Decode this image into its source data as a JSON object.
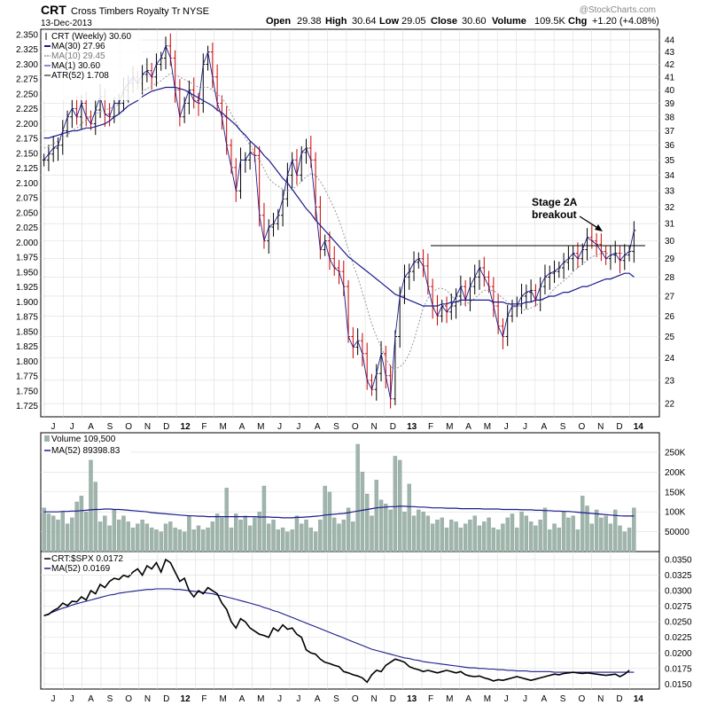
{
  "header": {
    "symbol": "CRT",
    "name": "Cross Timbers Royalty Tr",
    "exchange": "NYSE",
    "date": "13-Dec-2013",
    "open_label": "Open",
    "open": "29.38",
    "high_label": "High",
    "high": "30.64",
    "low_label": "Low",
    "low": "29.05",
    "close_label": "Close",
    "close": "30.60",
    "volume_label": "Volume",
    "volume": "109.5K",
    "chg_label": "Chg",
    "chg": "+1.20 (+4.08%)",
    "watermark": "@StockCharts.com"
  },
  "colors": {
    "up": "#000000",
    "down": "#cc0000",
    "ma30": "#1a1a8c",
    "ma10": "#999999",
    "volume_bar": "#9fb5ac",
    "ratio_line": "#000000",
    "grid": "#dddddd"
  },
  "legend": {
    "price": [
      "CRT (Weekly) 30.60",
      "MA(30) 27.96",
      "MA(10) 29.45",
      "MA(1) 30.60",
      "ATR(52) 1.708"
    ],
    "volume": [
      "Volume 109,500",
      "MA(52) 89398.83"
    ],
    "ratio": [
      "CRT:$SPX 0.0172",
      "MA(52) 0.0169"
    ]
  },
  "annotation": {
    "line1": "Stage 2A",
    "line2": "breakout"
  },
  "months": [
    "J",
    "J",
    "A",
    "S",
    "O",
    "N",
    "D",
    "12",
    "F",
    "M",
    "A",
    "M",
    "J",
    "J",
    "A",
    "S",
    "O",
    "N",
    "D",
    "13",
    "F",
    "M",
    "A",
    "M",
    "J",
    "J",
    "A",
    "S",
    "O",
    "N",
    "D",
    "14"
  ],
  "chart_data": [
    {
      "type": "line",
      "title": "CRT (Weekly)",
      "y_left_ticks": [
        "2.350",
        "2.325",
        "2.300",
        "2.275",
        "2.250",
        "2.225",
        "2.200",
        "2.175",
        "2.150",
        "2.125",
        "2.100",
        "2.075",
        "2.050",
        "2.025",
        "2.000",
        "1.975",
        "1.950",
        "1.925",
        "1.900",
        "1.875",
        "1.850",
        "1.825",
        "1.800",
        "1.775",
        "1.750",
        "1.725"
      ],
      "y_right_ticks": [
        44,
        43,
        42,
        41,
        40,
        39,
        38,
        37,
        36,
        35,
        34,
        33,
        32,
        31,
        30,
        29,
        28,
        27,
        26,
        25,
        24,
        23,
        22
      ],
      "y_right_scale": "log",
      "ylim": [
        21.6,
        44.6
      ],
      "close": [
        35.0,
        35.4,
        35.8,
        36.0,
        37.0,
        38.0,
        38.6,
        38.0,
        39.0,
        38.0,
        37.5,
        38.5,
        39.5,
        38.2,
        38.0,
        39.0,
        39.0,
        40.0,
        40.5,
        41.0,
        40.5,
        41.2,
        41.5,
        41.0,
        42.0,
        42.5,
        43.5,
        42.5,
        40.0,
        38.0,
        39.0,
        40.0,
        39.2,
        39.0,
        42.0,
        43.0,
        41.0,
        39.0,
        38.0,
        36.0,
        34.5,
        33.0,
        35.0,
        35.0,
        35.5,
        35.3,
        31.5,
        30.0,
        30.8,
        31.0,
        31.5,
        32.5,
        34.0,
        35.0,
        34.0,
        35.5,
        35.8,
        35.0,
        32.0,
        29.5,
        30.0,
        29.0,
        28.5,
        28.3,
        27.5,
        25.0,
        24.5,
        24.8,
        24.2,
        23.0,
        22.6,
        23.3,
        24.2,
        23.2,
        22.2,
        25.0,
        27.0,
        28.0,
        28.3,
        28.8,
        29.0,
        28.6,
        27.5,
        26.5,
        26.0,
        26.5,
        26.2,
        26.5,
        27.0,
        27.5,
        26.8,
        27.5,
        28.0,
        28.5,
        28.0,
        27.5,
        26.5,
        25.5,
        25.0,
        26.0,
        26.5,
        26.5,
        27.0,
        27.2,
        27.3,
        26.8,
        27.5,
        28.0,
        28.2,
        28.3,
        28.5,
        28.8,
        29.0,
        29.3,
        29.0,
        29.5,
        30.2,
        30.0,
        29.8,
        29.4,
        29.0,
        29.2,
        29.3,
        28.9,
        29.2,
        29.4,
        30.6
      ],
      "ma30": [
        36.5,
        36.5,
        36.6,
        36.7,
        36.8,
        36.9,
        37.0,
        37.0,
        37.1,
        37.2,
        37.2,
        37.3,
        37.4,
        37.5,
        37.7,
        38.0,
        38.2,
        38.5,
        38.8,
        39.0,
        39.2,
        39.5,
        39.7,
        39.9,
        40.0,
        40.1,
        40.2,
        40.2,
        40.2,
        40.1,
        40.0,
        39.8,
        39.6,
        39.4,
        39.2,
        39.0,
        38.8,
        38.5,
        38.3,
        38.0,
        37.7,
        37.4,
        37.0,
        36.7,
        36.3,
        36.0,
        35.7,
        35.3,
        35.0,
        34.6,
        34.2,
        33.8,
        33.5,
        33.1,
        32.7,
        32.3,
        31.9,
        31.6,
        31.2,
        30.9,
        30.6,
        30.3,
        30.0,
        29.7,
        29.4,
        29.1,
        28.9,
        28.7,
        28.5,
        28.3,
        28.1,
        27.9,
        27.7,
        27.5,
        27.3,
        27.1,
        27.0,
        26.9,
        26.8,
        26.7,
        26.6,
        26.5,
        26.5,
        26.5,
        26.5,
        26.6,
        26.6,
        26.7,
        26.7,
        26.8,
        26.8,
        26.8,
        26.8,
        26.8,
        26.8,
        26.8,
        26.7,
        26.7,
        26.7,
        26.6,
        26.6,
        26.6,
        26.6,
        26.7,
        26.7,
        26.8,
        26.8,
        26.9,
        27.0,
        27.0,
        27.1,
        27.2,
        27.2,
        27.3,
        27.4,
        27.5,
        27.5,
        27.6,
        27.7,
        27.8,
        27.9,
        27.9,
        28.0,
        28.1,
        28.2,
        28.2,
        28.0
      ],
      "ma10": [
        35.8,
        35.9,
        36.1,
        36.3,
        36.5,
        36.7,
        37.0,
        37.2,
        37.5,
        37.8,
        38.0,
        38.2,
        38.4,
        38.5,
        38.6,
        38.8,
        38.9,
        39.1,
        39.3,
        39.5,
        39.7,
        39.9,
        40.1,
        40.3,
        40.5,
        40.7,
        41.0,
        41.3,
        41.2,
        41.0,
        40.8,
        40.6,
        40.4,
        40.2,
        40.2,
        40.2,
        40.0,
        39.7,
        39.4,
        38.9,
        38.2,
        37.6,
        37.0,
        36.5,
        36.0,
        35.5,
        35.0,
        34.4,
        33.8,
        33.5,
        33.3,
        33.1,
        33.0,
        33.1,
        33.3,
        33.6,
        33.9,
        34.1,
        34.0,
        33.6,
        33.1,
        32.5,
        31.9,
        31.2,
        30.4,
        29.5,
        28.7,
        28.0,
        27.2,
        26.4,
        25.6,
        25.0,
        24.5,
        24.0,
        23.6,
        23.5,
        23.6,
        23.8,
        24.2,
        24.8,
        25.6,
        26.4,
        26.9,
        27.2,
        27.4,
        27.4,
        27.3,
        27.0,
        26.8,
        26.6,
        26.6,
        26.7,
        26.9,
        27.1,
        27.3,
        27.3,
        27.3,
        27.1,
        26.9,
        26.7,
        26.5,
        26.4,
        26.3,
        26.3,
        26.4,
        26.5,
        26.7,
        26.9,
        27.1,
        27.4,
        27.6,
        27.8,
        28.0,
        28.3,
        28.5,
        28.7,
        28.9,
        29.1,
        29.2,
        29.3,
        29.3,
        29.3,
        29.3,
        29.3,
        29.3,
        29.4,
        29.45
      ]
    },
    {
      "type": "bar",
      "title": "Volume",
      "y_ticks": [
        "250K",
        "200K",
        "150K",
        "100K",
        "50000"
      ],
      "ylim": [
        0,
        290000
      ],
      "values": [
        110000,
        95000,
        90000,
        80000,
        100000,
        70000,
        85000,
        125000,
        140000,
        100000,
        230000,
        175000,
        75000,
        90000,
        65000,
        105000,
        80000,
        90000,
        75000,
        60000,
        70000,
        80000,
        70000,
        60000,
        55000,
        50000,
        70000,
        75000,
        60000,
        55000,
        50000,
        90000,
        55000,
        65000,
        55000,
        60000,
        75000,
        95000,
        85000,
        160000,
        60000,
        95000,
        80000,
        90000,
        65000,
        85000,
        100000,
        165000,
        70000,
        80000,
        55000,
        60000,
        50000,
        55000,
        90000,
        70000,
        80000,
        60000,
        50000,
        80000,
        165000,
        150000,
        85000,
        70000,
        80000,
        110000,
        75000,
        270000,
        200000,
        145000,
        90000,
        180000,
        130000,
        120000,
        105000,
        240000,
        230000,
        100000,
        170000,
        90000,
        105000,
        100000,
        90000,
        70000,
        80000,
        85000,
        60000,
        80000,
        75000,
        60000,
        70000,
        80000,
        90000,
        65000,
        75000,
        85000,
        60000,
        55000,
        70000,
        85000,
        95000,
        60000,
        100000,
        90000,
        75000,
        65000,
        80000,
        110000,
        55000,
        70000,
        60000,
        100000,
        85000,
        90000,
        55000,
        140000,
        115000,
        70000,
        105000,
        85000,
        90000,
        70000,
        105000,
        65000,
        50000,
        60000,
        110000
      ],
      "ma52": [
        100000,
        100000,
        100000,
        100000,
        101000,
        101000,
        102000,
        102000,
        103000,
        104000,
        105000,
        106000,
        106000,
        107000,
        107000,
        106000,
        106000,
        105000,
        104000,
        103000,
        102000,
        101000,
        100000,
        98000,
        97000,
        96000,
        95000,
        94000,
        93000,
        92000,
        91000,
        90000,
        90000,
        89000,
        89000,
        88000,
        88000,
        88000,
        88000,
        88000,
        88000,
        88000,
        88000,
        88000,
        88000,
        88000,
        87000,
        87000,
        87000,
        86000,
        86000,
        85000,
        85000,
        85000,
        86000,
        86000,
        87000,
        88000,
        89000,
        90000,
        92000,
        93000,
        94000,
        95000,
        96000,
        98000,
        100000,
        102000,
        104000,
        106000,
        108000,
        110000,
        111000,
        112000,
        113000,
        113000,
        114000,
        114000,
        113000,
        113000,
        112000,
        112000,
        111000,
        110000,
        110000,
        110000,
        109000,
        109000,
        109000,
        108000,
        108000,
        108000,
        108000,
        108000,
        107000,
        107000,
        107000,
        107000,
        106000,
        106000,
        106000,
        106000,
        105000,
        105000,
        105000,
        104000,
        104000,
        103000,
        103000,
        102000,
        102000,
        101000,
        101000,
        100000,
        99000,
        98000,
        97000,
        96000,
        95000,
        94000,
        93000,
        92000,
        91000,
        90000,
        89500,
        89398.83,
        89398.83
      ]
    },
    {
      "type": "line",
      "title": "CRT:$SPX",
      "y_ticks": [
        "0.0350",
        "0.0325",
        "0.0300",
        "0.0275",
        "0.0250",
        "0.0225",
        "0.0200",
        "0.0175",
        "0.0150"
      ],
      "ylim": [
        0.0142,
        0.036
      ],
      "ratio": [
        0.026,
        0.0262,
        0.0268,
        0.0272,
        0.028,
        0.0276,
        0.0283,
        0.0282,
        0.029,
        0.0285,
        0.03,
        0.0295,
        0.031,
        0.0305,
        0.0315,
        0.032,
        0.0318,
        0.0325,
        0.0322,
        0.033,
        0.0335,
        0.0325,
        0.034,
        0.0335,
        0.0345,
        0.033,
        0.035,
        0.0345,
        0.033,
        0.0315,
        0.032,
        0.03,
        0.029,
        0.03,
        0.0295,
        0.0305,
        0.03,
        0.0295,
        0.028,
        0.027,
        0.025,
        0.024,
        0.0255,
        0.025,
        0.024,
        0.0235,
        0.023,
        0.0228,
        0.0225,
        0.024,
        0.0235,
        0.0245,
        0.0238,
        0.024,
        0.023,
        0.0225,
        0.0205,
        0.02,
        0.0198,
        0.019,
        0.0185,
        0.0183,
        0.018,
        0.0178,
        0.017,
        0.0168,
        0.0165,
        0.0163,
        0.016,
        0.0153,
        0.0165,
        0.0172,
        0.017,
        0.018,
        0.0185,
        0.019,
        0.0188,
        0.0185,
        0.0178,
        0.0175,
        0.0173,
        0.017,
        0.0172,
        0.017,
        0.0168,
        0.017,
        0.0172,
        0.017,
        0.0168,
        0.017,
        0.0165,
        0.0163,
        0.0162,
        0.0163,
        0.016,
        0.0158,
        0.0155,
        0.0157,
        0.0156,
        0.0158,
        0.016,
        0.0162,
        0.016,
        0.0158,
        0.0156,
        0.0158,
        0.016,
        0.0162,
        0.0164,
        0.0166,
        0.0165,
        0.0167,
        0.0168,
        0.0169,
        0.0168,
        0.0167,
        0.0168,
        0.0167,
        0.0166,
        0.0165,
        0.0164,
        0.0165,
        0.0166,
        0.0162,
        0.0166,
        0.0172
      ],
      "ma52": [
        0.026,
        0.0263,
        0.0266,
        0.0269,
        0.0272,
        0.0274,
        0.0277,
        0.0279,
        0.0281,
        0.0283,
        0.0285,
        0.0287,
        0.0289,
        0.0291,
        0.0293,
        0.0294,
        0.0296,
        0.0297,
        0.0298,
        0.0299,
        0.03,
        0.0301,
        0.0302,
        0.0302,
        0.0303,
        0.0303,
        0.0303,
        0.0303,
        0.0302,
        0.0302,
        0.0301,
        0.03,
        0.0299,
        0.0298,
        0.0297,
        0.0296,
        0.0295,
        0.0293,
        0.0292,
        0.029,
        0.0288,
        0.0286,
        0.0284,
        0.0282,
        0.028,
        0.0278,
        0.0276,
        0.0273,
        0.0271,
        0.0268,
        0.0266,
        0.0263,
        0.026,
        0.0257,
        0.0254,
        0.0251,
        0.0248,
        0.0245,
        0.0242,
        0.0239,
        0.0236,
        0.0233,
        0.023,
        0.0227,
        0.0224,
        0.0221,
        0.0218,
        0.0215,
        0.0212,
        0.0209,
        0.0206,
        0.0204,
        0.0202,
        0.02,
        0.0198,
        0.0196,
        0.0194,
        0.0192,
        0.0191,
        0.0189,
        0.0188,
        0.0186,
        0.0185,
        0.0184,
        0.0183,
        0.0182,
        0.0181,
        0.018,
        0.0179,
        0.0178,
        0.0177,
        0.0176,
        0.0176,
        0.0175,
        0.0175,
        0.0174,
        0.0174,
        0.0173,
        0.0173,
        0.0172,
        0.0172,
        0.0171,
        0.0171,
        0.0171,
        0.017,
        0.017,
        0.017,
        0.017,
        0.017,
        0.0169,
        0.0169,
        0.0169,
        0.0169,
        0.0169,
        0.0169,
        0.0169,
        0.0169,
        0.0169,
        0.0169,
        0.0169,
        0.0169,
        0.0169,
        0.0169,
        0.0169,
        0.0169,
        0.0169,
        0.0169
      ]
    }
  ]
}
